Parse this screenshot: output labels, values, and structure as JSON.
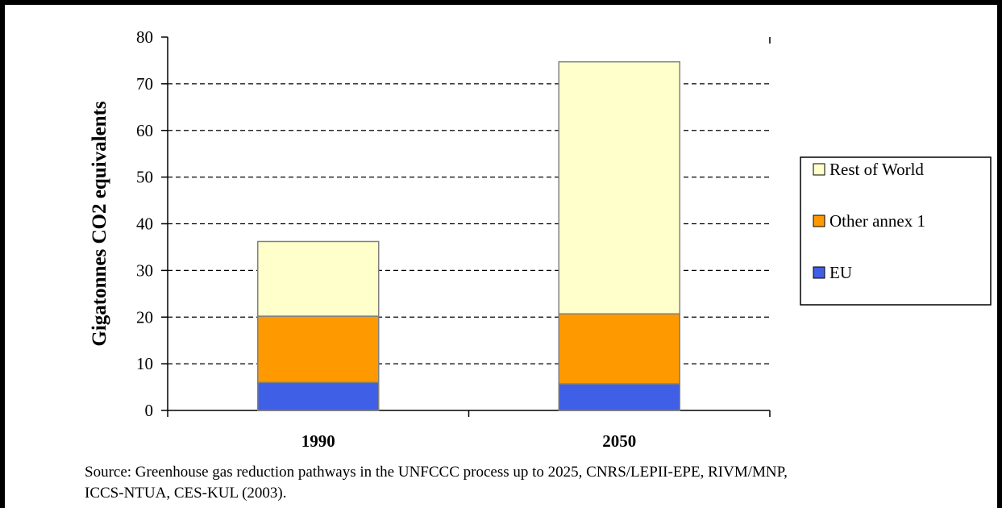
{
  "chart_data": {
    "type": "bar",
    "stacked": true,
    "categories": [
      "1990",
      "2050"
    ],
    "series": [
      {
        "name": "EU",
        "values": [
          6,
          5.7
        ]
      },
      {
        "name": "Other annex 1",
        "values": [
          14.2,
          15
        ]
      },
      {
        "name": "Rest of World",
        "values": [
          16,
          54
        ]
      }
    ],
    "ylabel": "Gigatonnes CO2 equivalents",
    "ylim": [
      0,
      80
    ],
    "yticks": [
      0,
      10,
      20,
      30,
      40,
      50,
      60,
      70,
      80
    ],
    "grid": true,
    "legend_position": "right",
    "legend_order": [
      "Rest of World",
      "Other annex 1",
      "EU"
    ],
    "colors": {
      "EU": "#3f5fe6",
      "Other annex 1": "#ff9900",
      "Rest of World": "#ffffcc"
    }
  },
  "source": {
    "line1": "Source: Greenhouse gas reduction pathways in the UNFCCC process up to 2025, CNRS/LEPII-EPE, RIVM/MNP,",
    "line2": "ICCS-NTUA, CES-KUL (2003)."
  }
}
